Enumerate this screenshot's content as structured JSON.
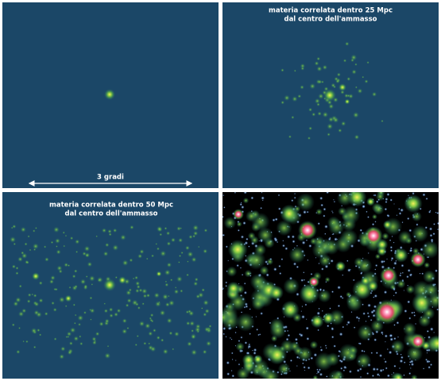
{
  "panel_1": {
    "scale_label": "3 gradi"
  },
  "panel_2": {
    "caption_lines": [
      "materia correlata dentro 25 Mpc",
      "dal centro dell'ammasso"
    ]
  },
  "panel_3": {
    "caption_lines": [
      "materia correlata dentro 50 Mpc",
      "dal centro dell'ammasso"
    ]
  }
}
